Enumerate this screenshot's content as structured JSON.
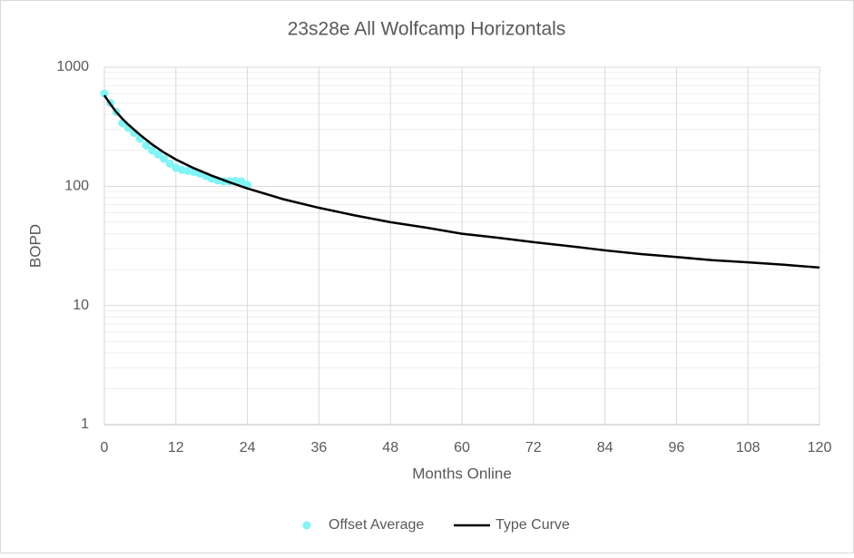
{
  "chart_data": {
    "type": "line",
    "title": "23s28e All Wolfcamp Horizontals",
    "xlabel": "Months Online",
    "ylabel": "BOPD",
    "xlim": [
      0,
      120
    ],
    "xticks": [
      0,
      12,
      24,
      36,
      48,
      60,
      72,
      84,
      96,
      108,
      120
    ],
    "ylim": [
      1,
      1000
    ],
    "yticks": [
      1,
      10,
      100,
      1000
    ],
    "log_y": true,
    "yminorticks": [
      2,
      3,
      4,
      5,
      6,
      7,
      8,
      9,
      20,
      30,
      40,
      50,
      60,
      70,
      80,
      90,
      200,
      300,
      400,
      500,
      600,
      700,
      800,
      900
    ],
    "grid": true,
    "legend": "bottom",
    "series": [
      {
        "name": "Offset Average",
        "color": "#7ff5f5",
        "style": "markers",
        "x": [
          0,
          1,
          2,
          3,
          4,
          5,
          6,
          7,
          8,
          9,
          10,
          11,
          12,
          13,
          14,
          15,
          16,
          17,
          18,
          19,
          20,
          21,
          22,
          23,
          24
        ],
        "values": [
          600,
          500,
          420,
          340,
          310,
          280,
          250,
          220,
          200,
          185,
          170,
          155,
          143,
          137,
          135,
          132,
          128,
          122,
          116,
          112,
          110,
          110,
          111,
          110,
          103
        ]
      },
      {
        "name": "Type Curve",
        "color": "#000000",
        "style": "line",
        "x": [
          0,
          1,
          2,
          3,
          4,
          6,
          8,
          10,
          12,
          15,
          18,
          21,
          24,
          30,
          36,
          42,
          48,
          54,
          60,
          66,
          72,
          78,
          84,
          90,
          96,
          102,
          108,
          114,
          120
        ],
        "values": [
          580,
          490,
          420,
          370,
          330,
          270,
          225,
          192,
          168,
          142,
          123,
          108,
          96,
          78,
          66,
          57,
          50,
          45,
          40,
          37,
          34,
          31.5,
          29,
          27,
          25.5,
          24,
          23,
          22,
          20.8
        ]
      }
    ]
  }
}
